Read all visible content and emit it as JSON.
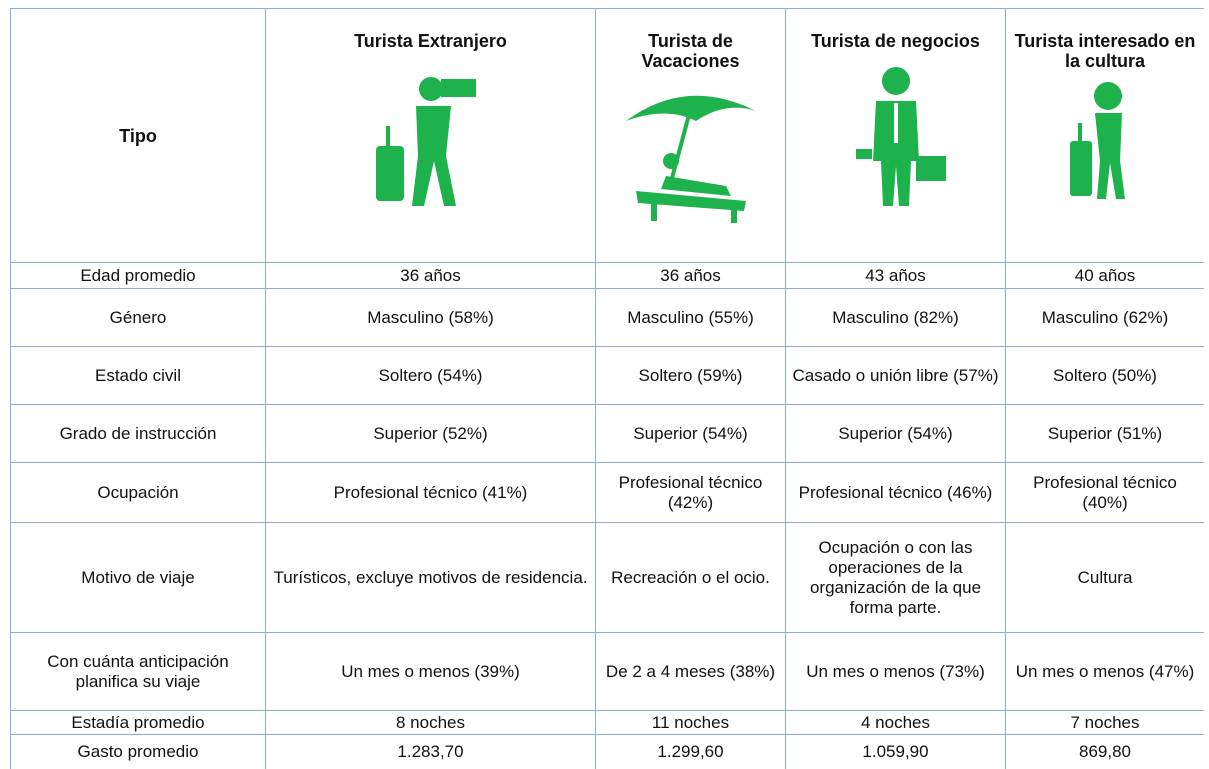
{
  "table": {
    "header": [
      "Tipo",
      "Turista Extranjero",
      "Turista de Vacaciones",
      "Turista de negocios",
      "Turista interesado en la cultura"
    ],
    "rows": [
      [
        "Edad promedio",
        "36 años",
        "36 años",
        "43 años",
        "40 años"
      ],
      [
        "Género",
        "Masculino (58%)",
        "Masculino (55%)",
        "Masculino (82%)",
        "Masculino (62%)"
      ],
      [
        "Estado civil",
        "Soltero (54%)",
        "Soltero (59%)",
        "Casado o unión libre (57%)",
        "Soltero (50%)"
      ],
      [
        "Grado de instrucción",
        "Superior (52%)",
        "Superior (54%)",
        "Superior (54%)",
        "Superior (51%)"
      ],
      [
        "Ocupación",
        "Profesional técnico (41%)",
        "Profesional técnico (42%)",
        "Profesional técnico (46%)",
        "Profesional técnico (40%)"
      ],
      [
        "Motivo de viaje",
        "Turísticos, excluye motivos de residencia.",
        "Recreación o el ocio.",
        "Ocupación o con las operaciones de la organización de la que forma parte.",
        "Cultura"
      ],
      [
        "Con cuánta anticipación planifica su viaje",
        "Un mes o menos (39%)",
        "De 2 a 4 meses (38%)",
        "Un mes o menos (73%)",
        "Un mes o menos (47%)"
      ],
      [
        "Estadía promedio",
        "8 noches",
        "11 noches",
        "4 noches",
        "7 noches"
      ],
      [
        "Gasto promedio",
        "1.283,70",
        "1.299,60",
        "1.059,90",
        "869,80"
      ]
    ]
  }
}
